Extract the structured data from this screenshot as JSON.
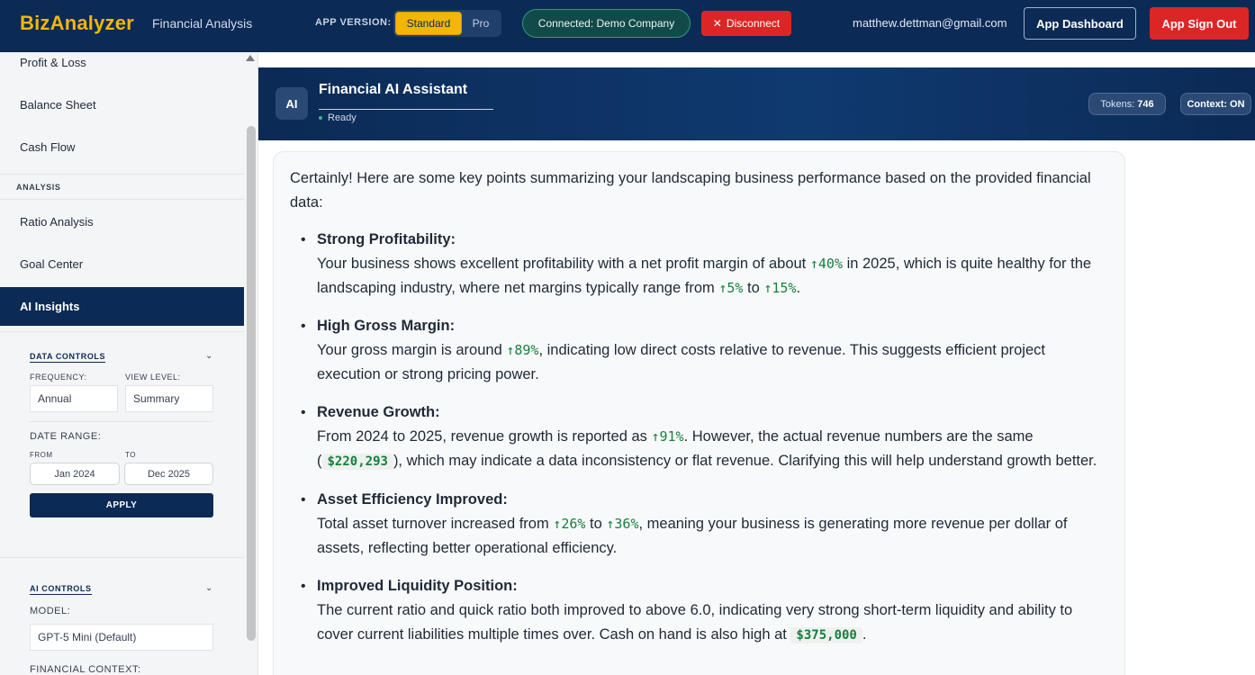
{
  "topbar": {
    "brand": "BizAnalyzer",
    "subtitle": "Financial Analysis",
    "version_label": "APP VERSION:",
    "version_standard": "Standard",
    "version_pro": "Pro",
    "connection": "Connected: Demo Company",
    "disconnect": "Disconnect",
    "email": "matthew.dettman@gmail.com",
    "dashboard": "App Dashboard",
    "sign_out": "App Sign Out"
  },
  "sidebar": {
    "items": [
      {
        "label": "Profit & Loss"
      },
      {
        "label": "Balance Sheet"
      },
      {
        "label": "Cash Flow"
      }
    ],
    "analysis_heading": "ANALYSIS",
    "analysis_items": [
      {
        "label": "Ratio Analysis"
      },
      {
        "label": "Goal Center"
      },
      {
        "label": "AI Insights"
      }
    ],
    "data_controls": {
      "title": "DATA CONTROLS",
      "frequency_label": "FREQUENCY:",
      "frequency_value": "Annual",
      "view_level_label": "VIEW LEVEL:",
      "view_level_value": "Summary",
      "date_range_label": "DATE RANGE:",
      "from_label": "FROM",
      "from_value": "Jan 2024",
      "to_label": "TO",
      "to_value": "Dec 2025",
      "apply": "APPLY"
    },
    "ai_controls": {
      "title": "AI CONTROLS",
      "model_label": "MODEL:",
      "model_value": "GPT-5 Mini (Default)",
      "context_label": "FINANCIAL CONTEXT:"
    }
  },
  "assistant": {
    "avatar": "AI",
    "title": "Financial AI Assistant",
    "status": "Ready",
    "tokens_label": "Tokens:",
    "tokens_value": "746",
    "context_label": "Context:",
    "context_value": "ON"
  },
  "message": {
    "intro": "Certainly! Here are some key points summarizing your landscaping business performance based on the provided financial data:",
    "points": [
      {
        "title": "Strong Profitability:",
        "t1": "Your business shows excellent profitability with a net profit margin of about ",
        "v1": "↑40%",
        "t2": " in 2025, which is quite healthy for the landscaping industry, where net margins typically range from ",
        "v2": "↑5%",
        "t3": " to ",
        "v3": "↑15%",
        "t4": "."
      },
      {
        "title": "High Gross Margin:",
        "t1": "Your gross margin is around ",
        "v1": "↑89%",
        "t2": ", indicating low direct costs relative to revenue. This suggests efficient project execution or strong pricing power."
      },
      {
        "title": "Revenue Growth:",
        "t1": "From 2024 to 2025, revenue growth is reported as ",
        "v1": "↑91%",
        "t2": ". However, the actual revenue numbers are the same (",
        "code": "$220,293",
        "t3": "), which may indicate a data inconsistency or flat revenue. Clarifying this will help understand growth better."
      },
      {
        "title": "Asset Efficiency Improved:",
        "t1": "Total asset turnover increased from ",
        "v1": "↑26%",
        "t2": " to ",
        "v2": "↑36%",
        "t3": ", meaning your business is generating more revenue per dollar of assets, reflecting better operational efficiency."
      },
      {
        "title": "Improved Liquidity Position:",
        "t1": "The current ratio and quick ratio both improved to above 6.0, indicating very strong short-term liquidity and ability to cover current liabilities multiple times over. Cash on hand is also high at ",
        "code": "$375,000",
        "t2": "."
      }
    ]
  }
}
